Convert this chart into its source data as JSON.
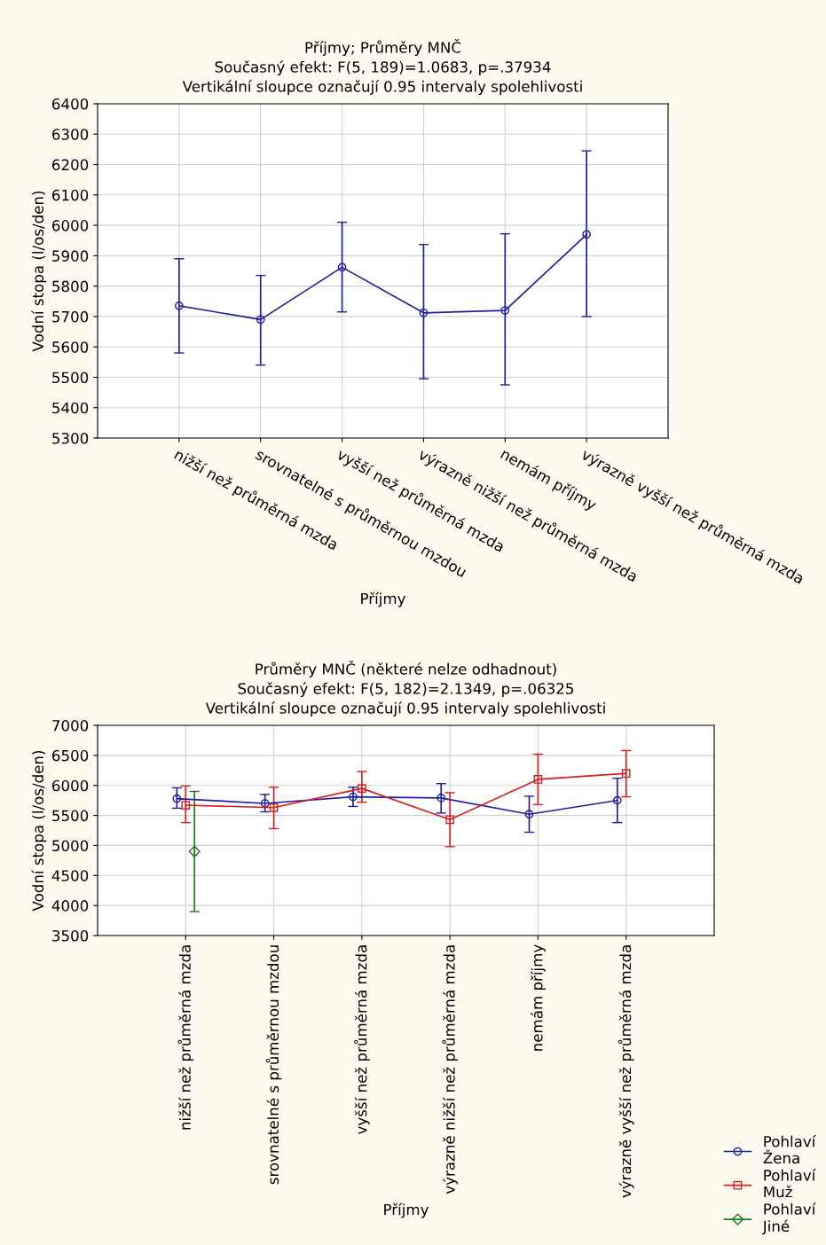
{
  "chart_data": [
    {
      "type": "line",
      "title": "Příjmy; Průměry MNČ",
      "subtitle": "Současný efekt: F(5, 189)=1.0683, p=.37934",
      "annotations": [
        "Vertikální sloupce označují 0.95 intervaly spolehlivosti"
      ],
      "xlabel": "Příjmy",
      "ylabel": "Vodní stopa (l/os/den)",
      "categories": [
        "nižší než průměrná mzda",
        "srovnatelné s průměrnou mzdou",
        "vyšší než průměrná mzda",
        "výrazně nižší než průměrná mzda",
        "nemám příjmy",
        "výrazně vyšší než průměrná mzda"
      ],
      "series": [
        {
          "color": "#1f1f9e",
          "marker": "circle",
          "values": [
            5735,
            5690,
            5862,
            5712,
            5720,
            5970
          ],
          "errors": [
            [
              5580,
              5890
            ],
            [
              5540,
              5835
            ],
            [
              5715,
              6010
            ],
            [
              5495,
              5937
            ],
            [
              5475,
              5972
            ],
            [
              5700,
              6245
            ]
          ]
        }
      ],
      "ylim": [
        5300,
        6400
      ],
      "yticks": [
        5300,
        5400,
        5500,
        5600,
        5700,
        5800,
        5900,
        6000,
        6100,
        6200,
        6300,
        6400
      ],
      "grid": true,
      "legend": false
    },
    {
      "type": "line",
      "title": "Průměry MNČ (některé nelze odhadnout)",
      "subtitle": "Současný efekt: F(5, 182)=2.1349, p=.06325",
      "annotations": [
        "Vertikální sloupce označují 0.95 intervaly spolehlivosti"
      ],
      "xlabel": "Příjmy",
      "ylabel": "Vodní stopa (l/os/den)",
      "categories": [
        "nižší než průměrná mzda",
        "srovnatelné s průměrnou mzdou",
        "vyšší než průměrná mzda",
        "výrazně nižší než průměrná mzda",
        "nemám příjmy",
        "výrazně vyšší než průměrná mzda"
      ],
      "series": [
        {
          "name": "Pohlaví\nŽena",
          "color": "#1f1f9e",
          "marker": "circle",
          "values": [
            5780,
            5700,
            5810,
            5790,
            5520,
            5750
          ],
          "errors": [
            [
              5620,
              5960
            ],
            [
              5560,
              5850
            ],
            [
              5650,
              5970
            ],
            [
              5540,
              6030
            ],
            [
              5220,
              5820
            ],
            [
              5380,
              6120
            ]
          ]
        },
        {
          "name": "Pohlaví\nMuž",
          "color": "#d42020",
          "marker": "square",
          "values": [
            5670,
            5630,
            5950,
            5430,
            6100,
            6200
          ],
          "errors": [
            [
              5380,
              5990
            ],
            [
              5280,
              5970
            ],
            [
              5720,
              6230
            ],
            [
              4980,
              5880
            ],
            [
              5680,
              6520
            ],
            [
              5810,
              6580
            ]
          ]
        },
        {
          "name": "Pohlaví\nJiné",
          "color": "#1e7a1e",
          "marker": "diamond",
          "values": [
            4900,
            null,
            null,
            null,
            null,
            null
          ],
          "errors": [
            [
              3900,
              5900
            ],
            null,
            null,
            null,
            null,
            null
          ]
        }
      ],
      "ylim": [
        3500,
        7000
      ],
      "yticks": [
        3500,
        4000,
        4500,
        5000,
        5500,
        6000,
        6500,
        7000
      ],
      "grid": true,
      "legend": "bottom right"
    }
  ]
}
